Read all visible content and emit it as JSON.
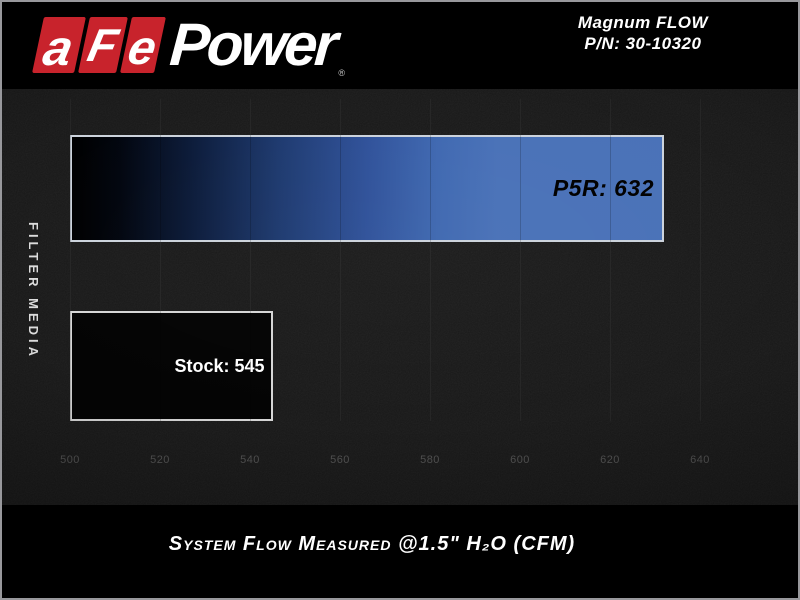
{
  "header": {
    "logo": {
      "blocks": [
        "a",
        "F",
        "e"
      ],
      "wordmark": "Power",
      "registered_mark": "®"
    },
    "product_line": "Magnum FLOW",
    "part_number": "P/N: 30-10320"
  },
  "chart_data": {
    "type": "bar",
    "orientation": "horizontal",
    "title": "System Flow Measured @1.5\" H₂O (CFM)",
    "ylabel": "FILTER MEDIA",
    "xlim": [
      500,
      650
    ],
    "xticks": [
      500,
      520,
      540,
      560,
      580,
      600,
      620,
      640
    ],
    "grid": true,
    "categories": [
      "P5R",
      "Stock"
    ],
    "series": [
      {
        "name": "P5R",
        "value": 632,
        "bar_label": "P5R: 632",
        "fill_style": "gradient-left-black",
        "fill_color": "#4a72b8",
        "label_color": "#000000"
      },
      {
        "name": "Stock",
        "value": 545,
        "bar_label": "Stock: 545",
        "fill_style": "solid",
        "fill_color": "#040404",
        "label_color": "#ffffff"
      }
    ]
  },
  "colors": {
    "header_bg": "#000000",
    "plot_bg": "#181818",
    "brand_red": "#c8232c",
    "bar_blue": "#4a72b8",
    "gridline_back": "#2f2f2f",
    "gridline_front": "rgba(0,0,0,0.18)",
    "tick_text": "#545454"
  }
}
